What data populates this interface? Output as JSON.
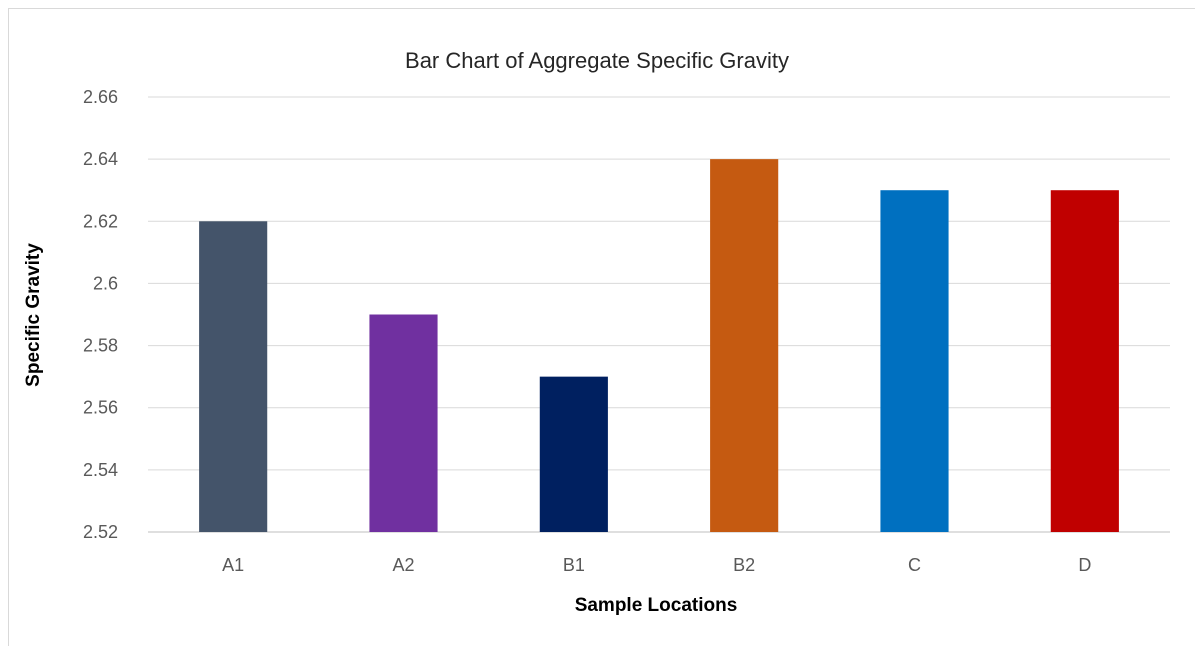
{
  "chart_data": {
    "type": "bar",
    "title": "Bar Chart of Aggregate Specific Gravity",
    "xlabel": "Sample Locations",
    "ylabel": "Specific Gravity",
    "categories": [
      "A1",
      "A2",
      "B1",
      "B2",
      "C",
      "D"
    ],
    "values": [
      2.62,
      2.59,
      2.57,
      2.64,
      2.63,
      2.63
    ],
    "bar_colors": [
      "#44546A",
      "#7030A0",
      "#002060",
      "#C55A11",
      "#0070C0",
      "#C00000"
    ],
    "ylim": [
      2.52,
      2.66
    ],
    "yticks": [
      2.52,
      2.54,
      2.56,
      2.58,
      2.6,
      2.62,
      2.64,
      2.66
    ],
    "ytick_labels": [
      "2.52",
      "2.54",
      "2.56",
      "2.58",
      "2.6",
      "2.62",
      "2.64",
      "2.66"
    ],
    "grid": true,
    "legend": "none"
  }
}
